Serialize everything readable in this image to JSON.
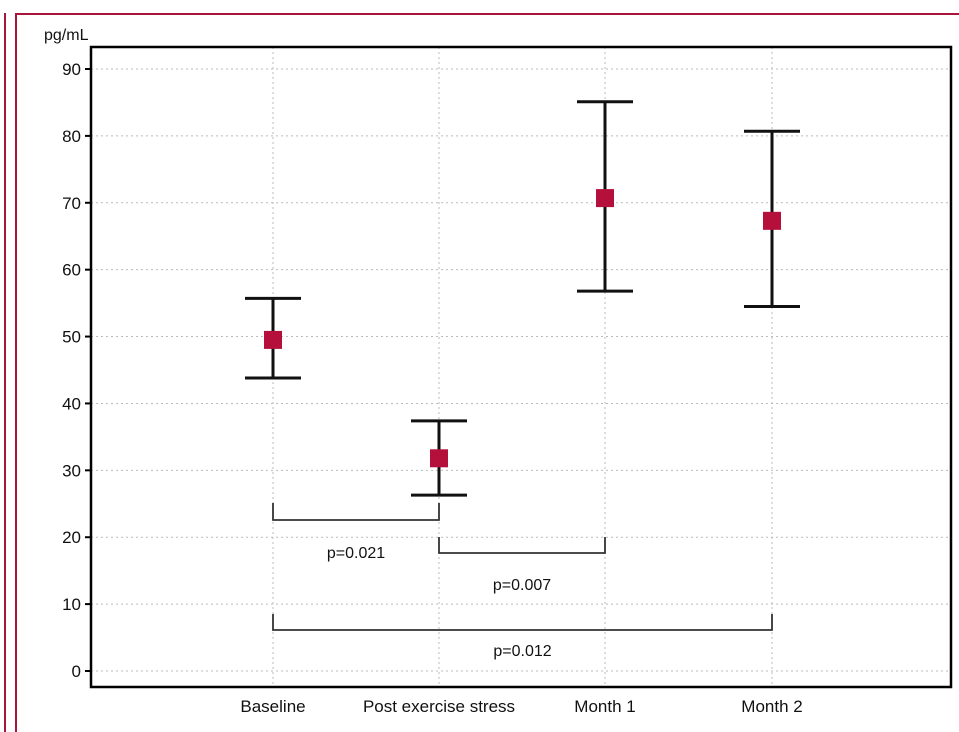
{
  "chart_data": {
    "type": "scatter",
    "ylabel": "pg/mL",
    "ylim": [
      0,
      90
    ],
    "yticks": [
      0,
      10,
      20,
      30,
      40,
      50,
      60,
      70,
      80,
      90
    ],
    "categories": [
      "Baseline",
      "Post exercise stress",
      "Month 1",
      "Month 2"
    ],
    "series": [
      {
        "values": [
          49.5,
          31.8,
          70.7,
          67.3
        ],
        "lower": [
          43.8,
          26.3,
          56.8,
          54.5
        ],
        "upper": [
          55.7,
          37.4,
          85.1,
          80.7
        ]
      }
    ],
    "comparisons": [
      {
        "from": "Baseline",
        "to": "Post exercise stress",
        "label": "p=0.021"
      },
      {
        "from": "Post exercise stress",
        "to": "Month 1",
        "label": "p=0.007"
      },
      {
        "from": "Baseline",
        "to": "Month 2",
        "label": "p=0.012"
      }
    ],
    "grid": true,
    "colors": {
      "marker": "#b5103b",
      "frame": "#a8143c",
      "axis": "#000000",
      "grid": "#bbbbbb"
    }
  }
}
